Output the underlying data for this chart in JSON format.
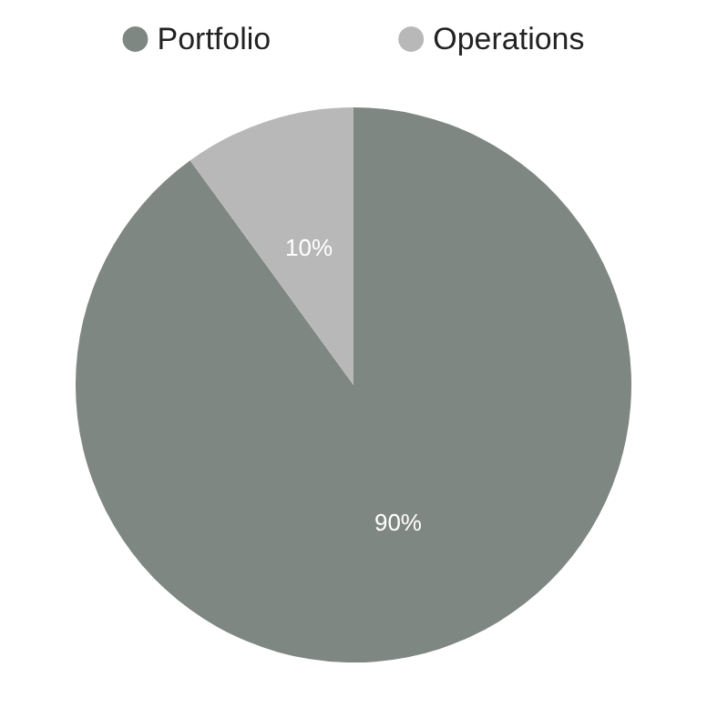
{
  "chart_data": {
    "type": "pie",
    "categories": [
      "Portfolio",
      "Operations"
    ],
    "values": [
      90,
      10
    ],
    "colors": [
      "#7f8782",
      "#b8b8b8"
    ],
    "value_labels": [
      "90%",
      "10%"
    ],
    "legend": "top"
  }
}
